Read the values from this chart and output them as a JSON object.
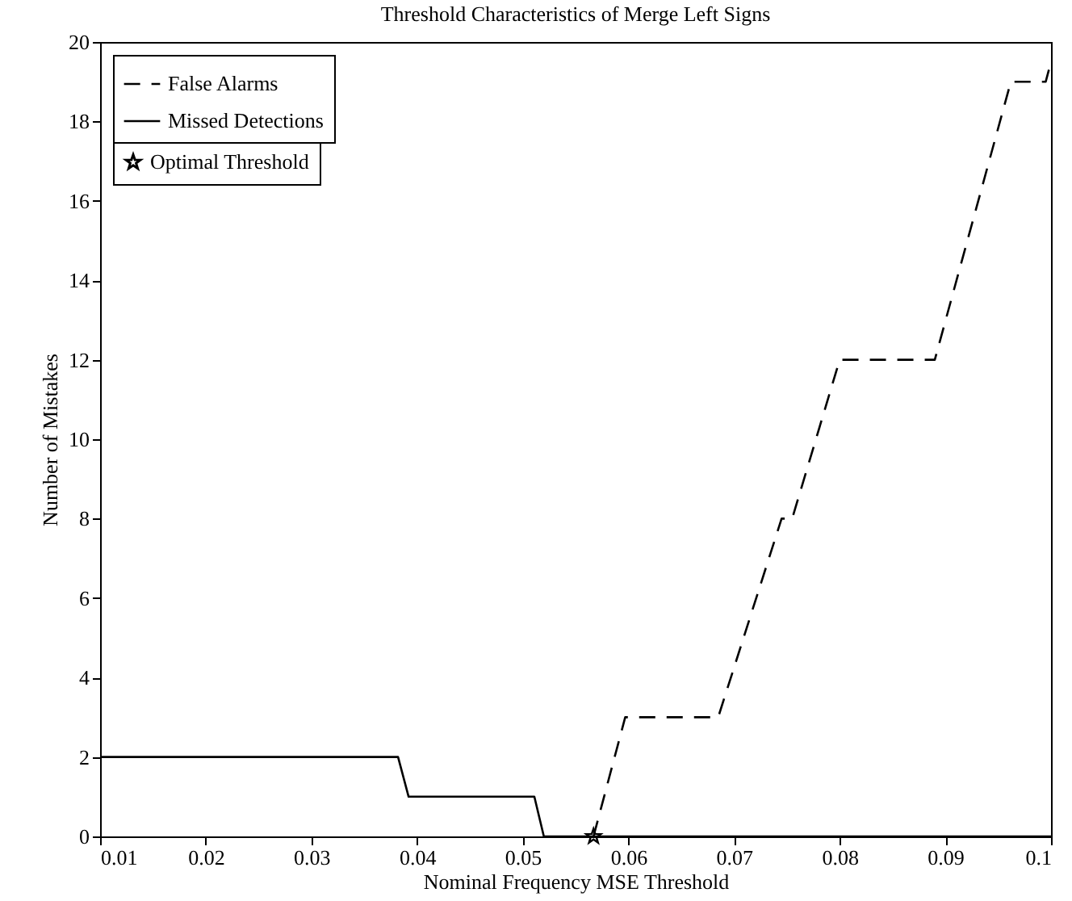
{
  "chart_data": {
    "type": "line",
    "title": "Threshold Characteristics of Merge Left Signs",
    "xlabel": "Nominal Frequency MSE Threshold",
    "ylabel": "Number of Mistakes",
    "xlim": [
      0.01,
      0.1
    ],
    "ylim": [
      0,
      20
    ],
    "xticks": [
      0.01,
      0.02,
      0.03,
      0.04,
      0.05,
      0.06,
      0.07,
      0.08,
      0.09,
      0.1
    ],
    "yticks": [
      0,
      2,
      4,
      6,
      8,
      10,
      12,
      14,
      16,
      18,
      20
    ],
    "grid": false,
    "legend": "top left",
    "marker": "none",
    "series": [
      {
        "name": "False Alarms",
        "color": "#000000",
        "line_style": "dashed",
        "x": [
          0.0567,
          0.0597,
          0.0685,
          0.0745,
          0.0755,
          0.08,
          0.089,
          0.0962,
          0.0995,
          0.1
        ],
        "values": [
          0,
          3,
          3,
          8,
          8,
          12,
          12,
          19,
          19,
          19.5
        ]
      },
      {
        "name": "Missed Detections",
        "color": "#000000",
        "line_style": "solid",
        "x": [
          0.01,
          0.0382,
          0.0392,
          0.0511,
          0.052,
          0.1
        ],
        "values": [
          2,
          2,
          1,
          1,
          0,
          0
        ]
      },
      {
        "name": "Optimal Threshold",
        "type": "scatter",
        "marker": "star",
        "color": "#000000",
        "x": [
          0.0567
        ],
        "values": [
          0
        ]
      }
    ]
  }
}
